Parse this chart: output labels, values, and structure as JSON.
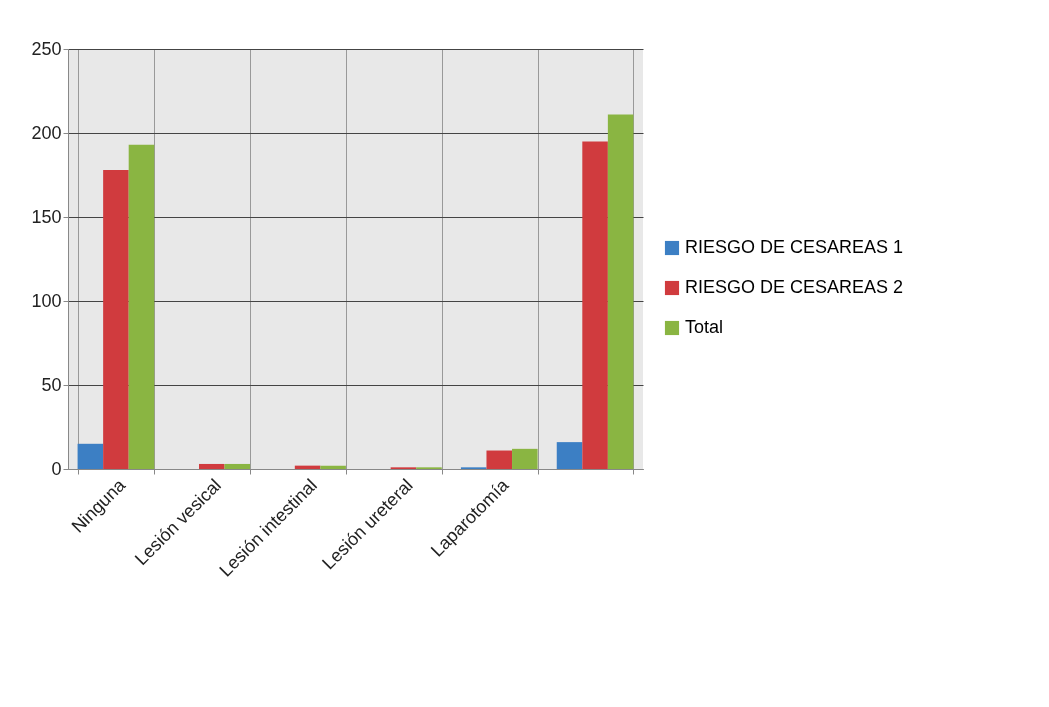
{
  "chart_data": {
    "type": "bar",
    "categories": [
      "Ninguna",
      "Lesión vesical",
      "Lesión intestinal",
      "Lesión ureteral",
      "Laparotomía",
      null
    ],
    "series": [
      {
        "name": "RIESGO DE CESAREAS 1",
        "color": "#3c7fc4",
        "values": [
          15,
          0,
          0,
          0,
          1,
          16
        ]
      },
      {
        "name": "RIESGO DE CESAREAS 2",
        "color": "#d03b3e",
        "values": [
          178,
          3,
          2,
          1,
          11,
          195
        ]
      },
      {
        "name": "Total",
        "color": "#8ab542",
        "values": [
          193,
          3,
          2,
          1,
          12,
          211
        ]
      }
    ],
    "ylim": [
      0,
      250
    ],
    "yticks": [
      0,
      50,
      100,
      150,
      200,
      250
    ],
    "grid": "y",
    "legend": "right"
  }
}
